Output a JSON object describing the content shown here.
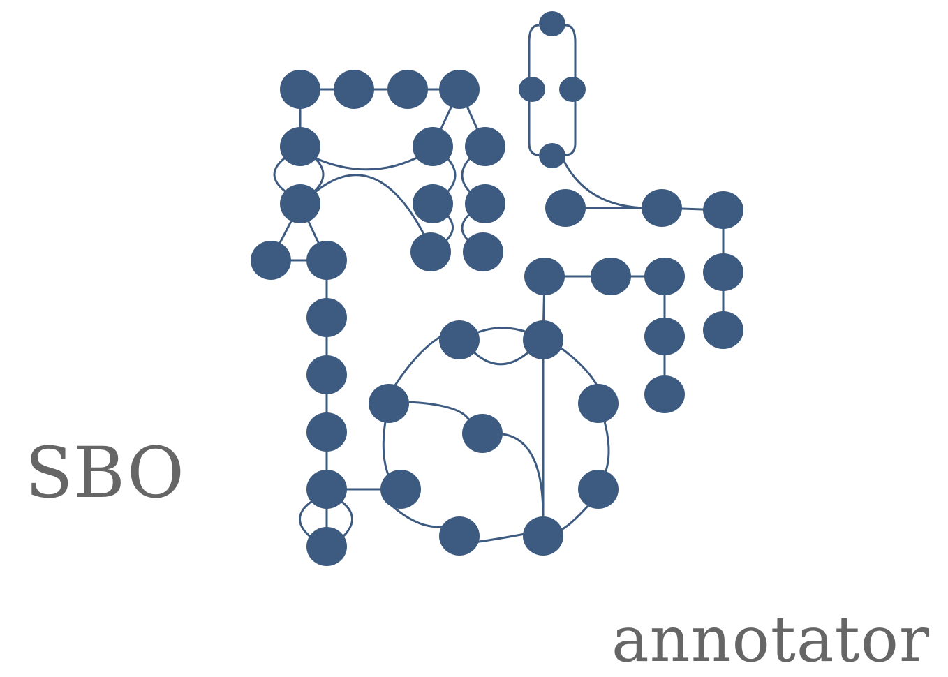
{
  "logo": {
    "word_1": "SBO",
    "word_2": "annotator"
  },
  "colors": {
    "graph": "#3d5a80",
    "text": "#666666",
    "background": "#ffffff"
  }
}
